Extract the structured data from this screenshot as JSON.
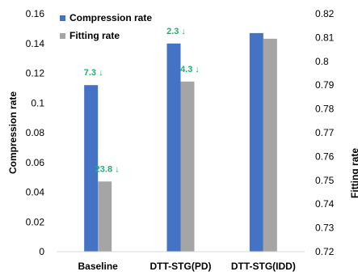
{
  "chart_data": {
    "type": "bar",
    "categories": [
      "Baseline",
      "DTT-STG(PD)",
      "DTT-STG(IDD)"
    ],
    "series": [
      {
        "name": "Compression rate",
        "axis": "left",
        "color": "#4472C4",
        "values": [
          0.112,
          0.14,
          0.147
        ]
      },
      {
        "name": "Fitting rate",
        "axis": "right",
        "color": "#A5A5A5",
        "values": [
          0.7495,
          0.7915,
          0.8095
        ]
      }
    ],
    "ylabel_left": "Compression rate",
    "ylabel_right": "Fitting rate",
    "ylim_left": [
      0,
      0.16
    ],
    "ylim_right": [
      0.72,
      0.82
    ],
    "yticks_left": [
      "0",
      "0.02",
      "0.04",
      "0.06",
      "0.08",
      "0.1",
      "0.12",
      "0.14",
      "0.16"
    ],
    "yticks_right": [
      "0.72",
      "0.73",
      "0.74",
      "0.75",
      "0.76",
      "0.77",
      "0.78",
      "0.79",
      "0.8",
      "0.81",
      "0.82"
    ],
    "legend_position": "top-left",
    "grid": false,
    "annotations": [
      {
        "series": 0,
        "category": 0,
        "text": "7.3"
      },
      {
        "series": 1,
        "category": 0,
        "text": "23.8"
      },
      {
        "series": 0,
        "category": 1,
        "text": "2.3"
      },
      {
        "series": 1,
        "category": 1,
        "text": "4.3"
      }
    ],
    "annotation_arrow": "↓",
    "annotation_color": "#21B06B"
  }
}
